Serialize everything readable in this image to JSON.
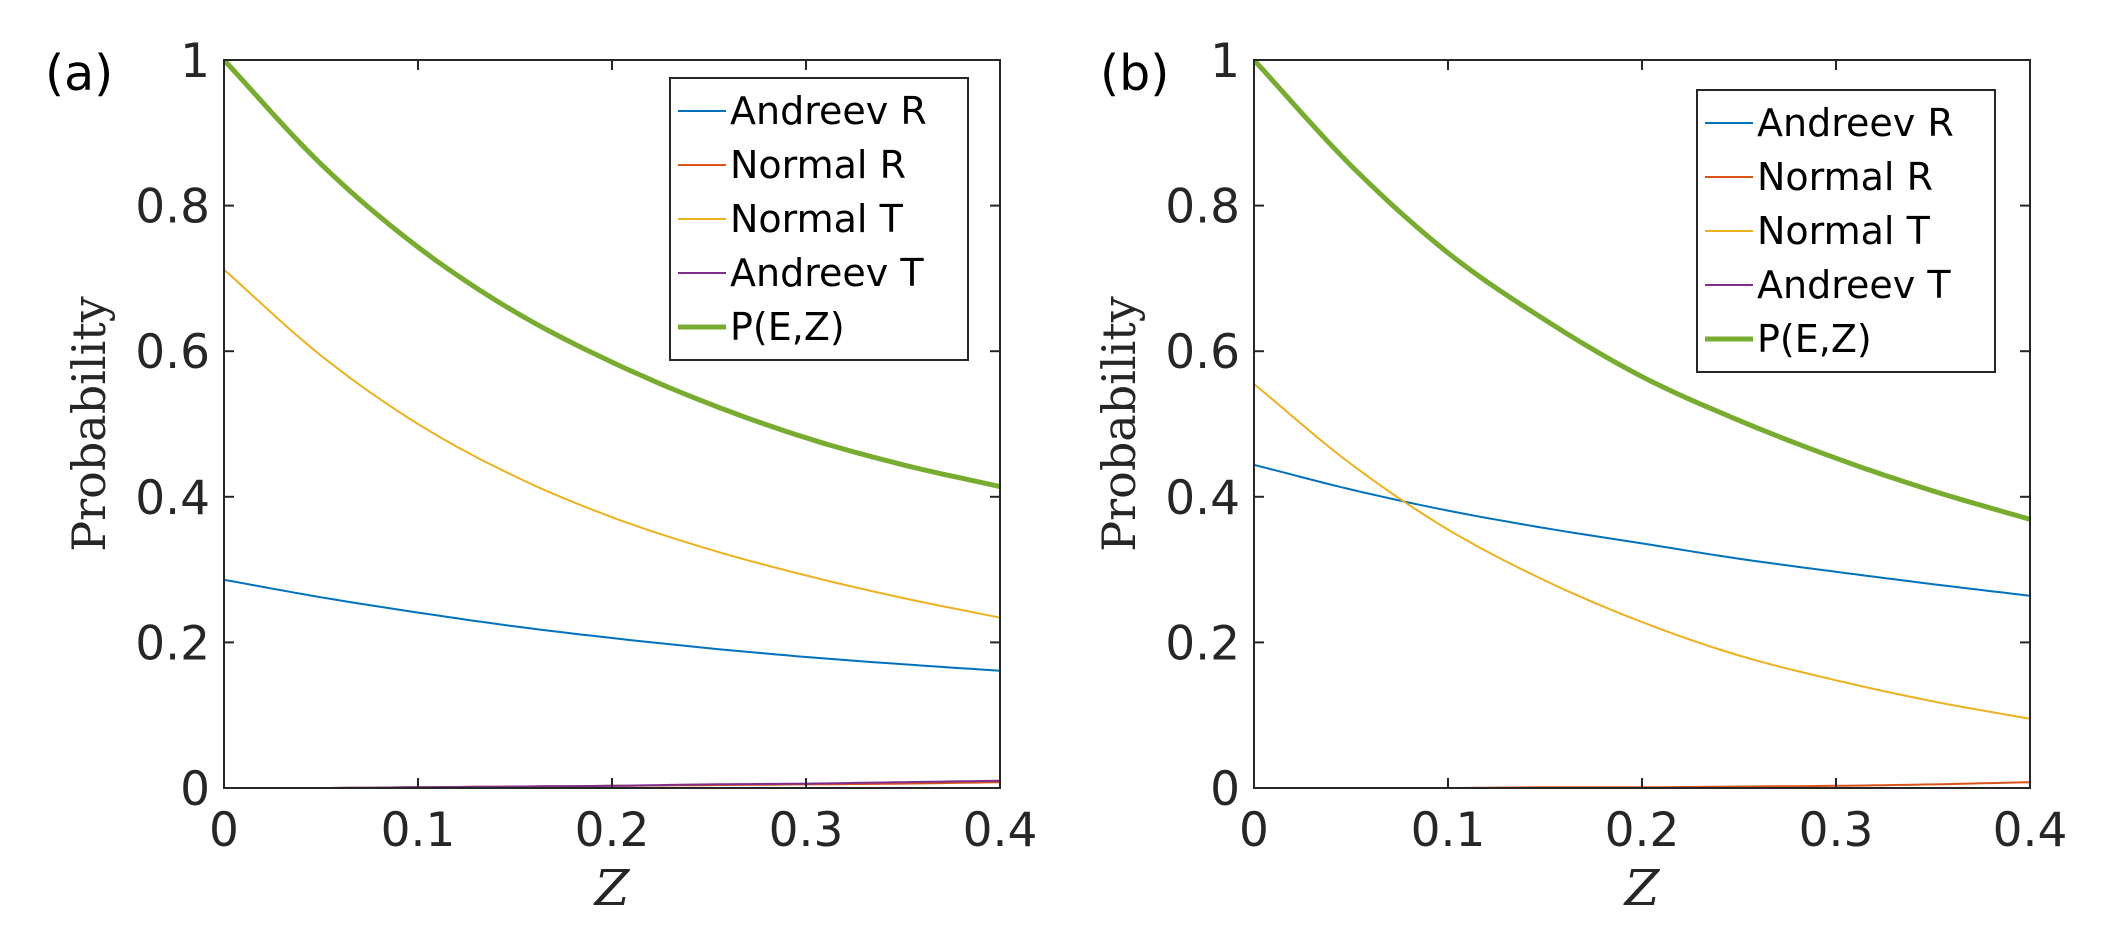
{
  "chart_data": [
    {
      "type": "line",
      "panel_label": "(a)",
      "xlabel": "Z",
      "ylabel": "Probability",
      "xlim": [
        0,
        0.4
      ],
      "ylim": [
        0,
        1
      ],
      "xticks": [
        "0",
        "0.1",
        "0.2",
        "0.3",
        "0.4"
      ],
      "yticks": [
        "0",
        "0.2",
        "0.4",
        "0.6",
        "0.8",
        "1"
      ],
      "grid": false,
      "legend_position": "top-right",
      "x": [
        0,
        0.05,
        0.1,
        0.15,
        0.2,
        0.25,
        0.3,
        0.35,
        0.4
      ],
      "series": [
        {
          "name": "Andreev R",
          "color": "#0072BD",
          "width": 2,
          "values": [
            0.286,
            0.262,
            0.241,
            0.222,
            0.206,
            0.192,
            0.18,
            0.17,
            0.161
          ]
        },
        {
          "name": "Normal R",
          "color": "#D95319",
          "width": 2,
          "values": [
            0.0,
            0.0,
            0.001,
            0.002,
            0.003,
            0.004,
            0.005,
            0.006,
            0.008
          ]
        },
        {
          "name": "Normal T",
          "color": "#EDB120",
          "width": 2,
          "values": [
            0.712,
            0.594,
            0.5,
            0.428,
            0.372,
            0.328,
            0.292,
            0.261,
            0.234
          ]
        },
        {
          "name": "Andreev T",
          "color": "#7E2F8E",
          "width": 2,
          "values": [
            0.0,
            0.0,
            0.001,
            0.002,
            0.003,
            0.005,
            0.006,
            0.008,
            0.01
          ]
        },
        {
          "name": "P(E,Z)",
          "color": "#77AC30",
          "width": 5,
          "values": [
            1.0,
            0.857,
            0.743,
            0.654,
            0.585,
            0.528,
            0.481,
            0.444,
            0.414
          ]
        }
      ]
    },
    {
      "type": "line",
      "panel_label": "(b)",
      "xlabel": "Z",
      "ylabel": "Probability",
      "xlim": [
        0,
        0.4
      ],
      "ylim": [
        0,
        1
      ],
      "xticks": [
        "0",
        "0.1",
        "0.2",
        "0.3",
        "0.4"
      ],
      "yticks": [
        "0",
        "0.2",
        "0.4",
        "0.6",
        "0.8",
        "1"
      ],
      "grid": false,
      "legend_position": "top-right",
      "x": [
        0,
        0.05,
        0.1,
        0.15,
        0.2,
        0.25,
        0.3,
        0.35,
        0.4
      ],
      "series": [
        {
          "name": "Andreev R",
          "color": "#0072BD",
          "width": 2,
          "values": [
            0.444,
            0.41,
            0.381,
            0.357,
            0.336,
            0.315,
            0.297,
            0.28,
            0.264
          ]
        },
        {
          "name": "Normal R",
          "color": "#D95319",
          "width": 2,
          "values": [
            0.0,
            0.0,
            0.0,
            0.001,
            0.001,
            0.002,
            0.003,
            0.005,
            0.008
          ]
        },
        {
          "name": "Normal T",
          "color": "#EDB120",
          "width": 2,
          "values": [
            0.555,
            0.445,
            0.355,
            0.285,
            0.228,
            0.182,
            0.148,
            0.119,
            0.095
          ]
        },
        {
          "name": "Andreev T",
          "color": "#7E2F8E",
          "width": 2,
          "values": [
            0.0,
            0.0,
            0.0,
            0.0,
            0.0,
            0.0,
            0.0,
            0.0,
            0.0
          ]
        },
        {
          "name": "P(E,Z)",
          "color": "#77AC30",
          "width": 5,
          "values": [
            1.0,
            0.855,
            0.735,
            0.643,
            0.565,
            0.505,
            0.453,
            0.408,
            0.369
          ]
        }
      ]
    }
  ]
}
